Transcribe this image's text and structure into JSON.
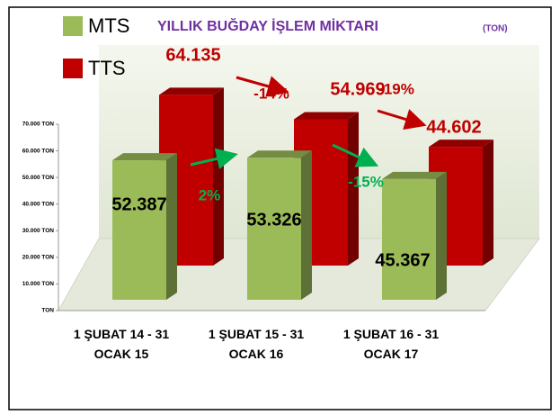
{
  "chart_data": {
    "type": "bar3d",
    "title": "YILLIK BUĞDAY İŞLEM MİKTARI",
    "title_unit": "(TON)",
    "categories": [
      "1 ŞUBAT 14 - 31 OCAK 15",
      "1 ŞUBAT 15 - 31 OCAK 16",
      "1 ŞUBAT 16 - 31 OCAK 17"
    ],
    "series": [
      {
        "name": "MTS",
        "color": "#9bbb59",
        "values": [
          52387,
          53326,
          45367
        ],
        "value_labels": [
          "52.387",
          "53.326",
          "45.367"
        ]
      },
      {
        "name": "TTS",
        "color": "#c00000",
        "values": [
          64135,
          54969,
          44602
        ],
        "value_labels": [
          "64.135",
          "54.969",
          "44.602"
        ]
      }
    ],
    "ylim": [
      0,
      70000
    ],
    "yticks": [
      {
        "value": 0,
        "label": "TON"
      },
      {
        "value": 10000,
        "label": "10.000 TON"
      },
      {
        "value": 20000,
        "label": "20.000 TON"
      },
      {
        "value": 30000,
        "label": "30.000 TON"
      },
      {
        "value": 40000,
        "label": "40.000 TON"
      },
      {
        "value": 50000,
        "label": "50.000 TON"
      },
      {
        "value": 60000,
        "label": "60.000 TON"
      },
      {
        "value": 70000,
        "label": "70.000 TON"
      }
    ],
    "annotations": [
      {
        "text": "2%",
        "color": "#00b050"
      },
      {
        "text": "-15%",
        "color": "#00b050"
      },
      {
        "text": "-14%",
        "color": "#c00000"
      },
      {
        "text": "-19%",
        "color": "#c00000"
      }
    ]
  }
}
